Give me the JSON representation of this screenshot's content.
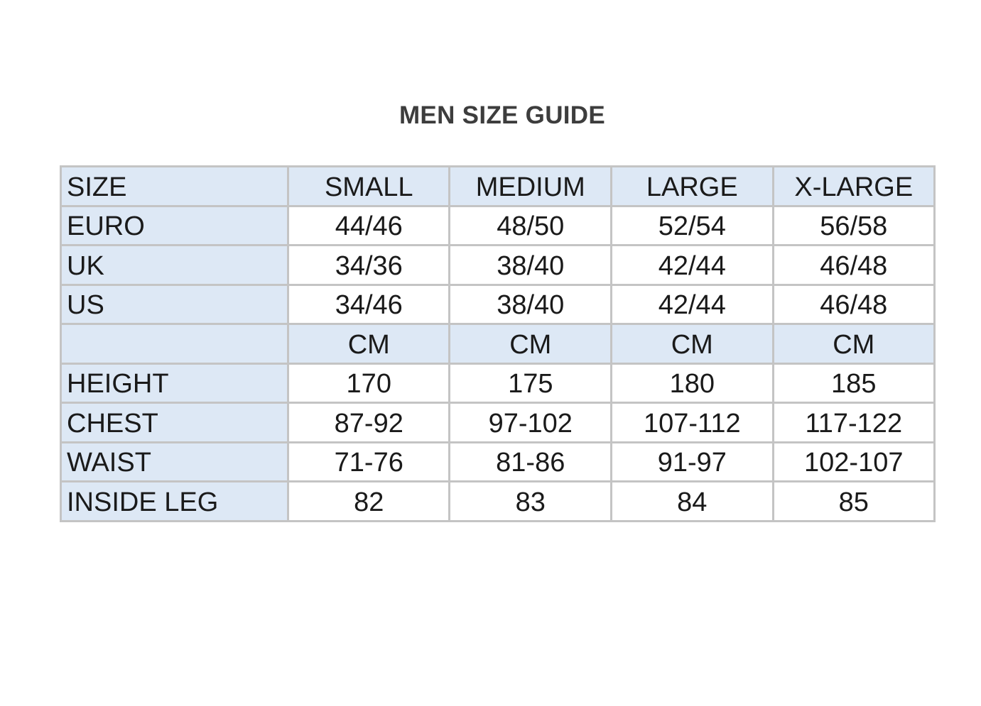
{
  "title": "MEN SIZE GUIDE",
  "colors": {
    "shaded_cell": "#dde8f5",
    "border": "#c4c4c4"
  },
  "table": {
    "rows": [
      {
        "label": "SIZE",
        "values": [
          "SMALL",
          "MEDIUM",
          "LARGE",
          "X-LARGE"
        ],
        "shaded": true
      },
      {
        "label": "EURO",
        "values": [
          "44/46",
          "48/50",
          "52/54",
          "56/58"
        ]
      },
      {
        "label": "UK",
        "values": [
          "34/36",
          "38/40",
          "42/44",
          "46/48"
        ]
      },
      {
        "label": "US",
        "values": [
          "34/46",
          "38/40",
          "42/44",
          "46/48"
        ]
      },
      {
        "label": "",
        "values": [
          "CM",
          "CM",
          "CM",
          "CM"
        ],
        "shaded": true
      },
      {
        "label": "HEIGHT",
        "values": [
          "170",
          "175",
          "180",
          "185"
        ]
      },
      {
        "label": "CHEST",
        "values": [
          "87-92",
          "97-102",
          "107-112",
          "117-122"
        ]
      },
      {
        "label": "WAIST",
        "values": [
          "71-76",
          "81-86",
          "91-97",
          "102-107"
        ]
      },
      {
        "label": "INSIDE LEG",
        "values": [
          "82",
          "83",
          "84",
          "85"
        ]
      }
    ]
  }
}
